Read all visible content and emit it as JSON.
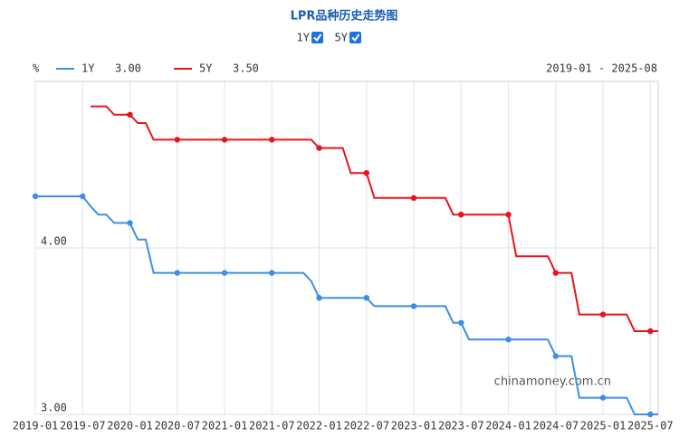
{
  "chart_data": {
    "type": "line",
    "title": "LPR品种历史走势图",
    "unit": "%",
    "range_label": "2019-01 - 2025-08",
    "watermark": "chinamoney.com.cn",
    "categories": [
      "2019-01",
      "2019-02",
      "2019-03",
      "2019-04",
      "2019-05",
      "2019-06",
      "2019-07",
      "2019-08",
      "2019-09",
      "2019-10",
      "2019-11",
      "2019-12",
      "2020-01",
      "2020-02",
      "2020-03",
      "2020-04",
      "2020-05",
      "2020-06",
      "2020-07",
      "2020-08",
      "2020-09",
      "2020-10",
      "2020-11",
      "2020-12",
      "2021-01",
      "2021-02",
      "2021-03",
      "2021-04",
      "2021-05",
      "2021-06",
      "2021-07",
      "2021-08",
      "2021-09",
      "2021-10",
      "2021-11",
      "2021-12",
      "2022-01",
      "2022-02",
      "2022-03",
      "2022-04",
      "2022-05",
      "2022-06",
      "2022-07",
      "2022-08",
      "2022-09",
      "2022-10",
      "2022-11",
      "2022-12",
      "2023-01",
      "2023-02",
      "2023-03",
      "2023-04",
      "2023-05",
      "2023-06",
      "2023-07",
      "2023-08",
      "2023-09",
      "2023-10",
      "2023-11",
      "2023-12",
      "2024-01",
      "2024-02",
      "2024-03",
      "2024-04",
      "2024-05",
      "2024-06",
      "2024-07",
      "2024-08",
      "2024-09",
      "2024-10",
      "2024-11",
      "2024-12",
      "2025-01",
      "2025-02",
      "2025-03",
      "2025-04",
      "2025-05",
      "2025-06",
      "2025-07",
      "2025-08"
    ],
    "series": [
      {
        "name": "1Y",
        "legend_value": "3.00",
        "color": "#3d8ee8",
        "values": [
          4.31,
          4.31,
          4.31,
          4.31,
          4.31,
          4.31,
          4.31,
          4.25,
          4.2,
          4.2,
          4.15,
          4.15,
          4.15,
          4.05,
          4.05,
          3.85,
          3.85,
          3.85,
          3.85,
          3.85,
          3.85,
          3.85,
          3.85,
          3.85,
          3.85,
          3.85,
          3.85,
          3.85,
          3.85,
          3.85,
          3.85,
          3.85,
          3.85,
          3.85,
          3.85,
          3.8,
          3.7,
          3.7,
          3.7,
          3.7,
          3.7,
          3.7,
          3.7,
          3.65,
          3.65,
          3.65,
          3.65,
          3.65,
          3.65,
          3.65,
          3.65,
          3.65,
          3.65,
          3.55,
          3.55,
          3.45,
          3.45,
          3.45,
          3.45,
          3.45,
          3.45,
          3.45,
          3.45,
          3.45,
          3.45,
          3.45,
          3.35,
          3.35,
          3.35,
          3.1,
          3.1,
          3.1,
          3.1,
          3.1,
          3.1,
          3.1,
          3,
          3,
          3,
          3
        ]
      },
      {
        "name": "5Y",
        "legend_value": "3.50",
        "color": "#e8141c",
        "values": [
          null,
          null,
          null,
          null,
          null,
          null,
          null,
          4.85,
          4.85,
          4.85,
          4.8,
          4.8,
          4.8,
          4.75,
          4.75,
          4.65,
          4.65,
          4.65,
          4.65,
          4.65,
          4.65,
          4.65,
          4.65,
          4.65,
          4.65,
          4.65,
          4.65,
          4.65,
          4.65,
          4.65,
          4.65,
          4.65,
          4.65,
          4.65,
          4.65,
          4.65,
          4.6,
          4.6,
          4.6,
          4.6,
          4.45,
          4.45,
          4.45,
          4.3,
          4.3,
          4.3,
          4.3,
          4.3,
          4.3,
          4.3,
          4.3,
          4.3,
          4.3,
          4.2,
          4.2,
          4.2,
          4.2,
          4.2,
          4.2,
          4.2,
          4.2,
          3.95,
          3.95,
          3.95,
          3.95,
          3.95,
          3.85,
          3.85,
          3.85,
          3.6,
          3.6,
          3.6,
          3.6,
          3.6,
          3.6,
          3.6,
          3.5,
          3.5,
          3.5,
          3.5
        ]
      }
    ],
    "ylim": [
      3,
      5
    ],
    "yticks": [
      {
        "value": 3,
        "label": "3.00"
      },
      {
        "value": 4,
        "label": "4.00"
      }
    ],
    "grid": true
  }
}
